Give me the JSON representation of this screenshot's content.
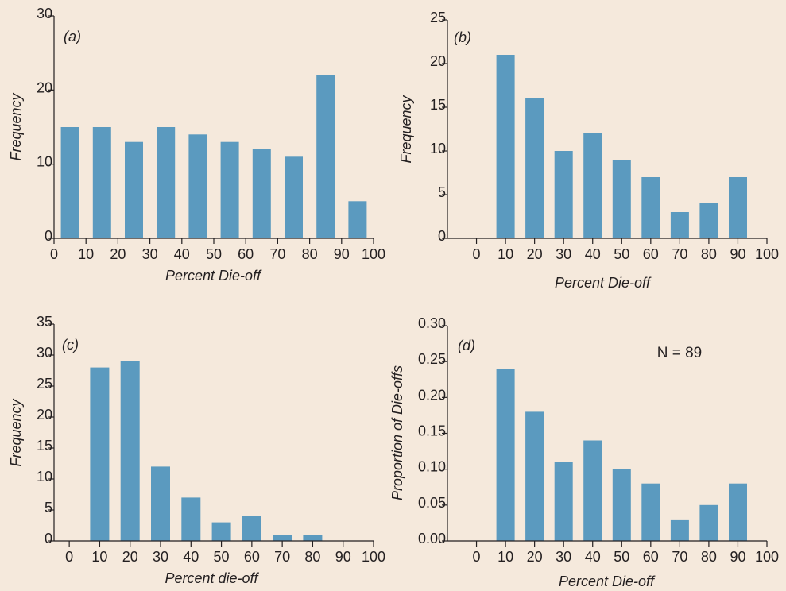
{
  "chart_data": [
    {
      "type": "bar",
      "panel_label": "(a)",
      "x": [
        5,
        15,
        25,
        35,
        45,
        55,
        65,
        75,
        85,
        95
      ],
      "values": [
        15,
        15,
        13,
        15,
        14,
        13,
        12,
        11,
        22,
        5
      ],
      "xticks": [
        "0",
        "10",
        "20",
        "30",
        "40",
        "50",
        "60",
        "70",
        "80",
        "90",
        "100"
      ],
      "yticks": [
        "0",
        "10",
        "20",
        "30"
      ],
      "xlabel": "Percent Die-off",
      "ylabel": "Frequency",
      "xlim": [
        0,
        100
      ],
      "ylim": [
        0,
        30
      ],
      "bar_color": "#5b9abf",
      "grid": false
    },
    {
      "type": "bar",
      "panel_label": "(b)",
      "x": [
        10,
        20,
        30,
        40,
        50,
        60,
        70,
        80,
        90
      ],
      "values": [
        21,
        16,
        10,
        12,
        9,
        7,
        3,
        4,
        7
      ],
      "xticks": [
        "0",
        "10",
        "20",
        "30",
        "40",
        "50",
        "60",
        "70",
        "80",
        "90",
        "100"
      ],
      "yticks": [
        "0",
        "5",
        "10",
        "15",
        "20",
        "25"
      ],
      "xlabel": "Percent  Die-off",
      "ylabel": "Frequency",
      "xlim": [
        -10,
        100
      ],
      "ylim": [
        0,
        25
      ],
      "bar_color": "#5b9abf",
      "grid": false
    },
    {
      "type": "bar",
      "panel_label": "(c)",
      "x": [
        10,
        20,
        30,
        40,
        50,
        60,
        70,
        80
      ],
      "values": [
        28,
        29,
        12,
        7,
        3,
        4,
        1,
        1
      ],
      "xticks": [
        "0",
        "10",
        "20",
        "30",
        "40",
        "50",
        "60",
        "70",
        "80",
        "90",
        "100"
      ],
      "yticks": [
        "0",
        "5",
        "10",
        "15",
        "20",
        "25",
        "30",
        "35"
      ],
      "xlabel": "Percent die-off",
      "ylabel": "Frequency",
      "xlim": [
        -5,
        100
      ],
      "ylim": [
        0,
        35
      ],
      "bar_color": "#5b9abf",
      "grid": false
    },
    {
      "type": "bar",
      "panel_label": "(d)",
      "annotation": "N = 89",
      "x": [
        10,
        20,
        30,
        40,
        50,
        60,
        70,
        80,
        90
      ],
      "values": [
        0.24,
        0.18,
        0.11,
        0.14,
        0.1,
        0.08,
        0.03,
        0.05,
        0.08
      ],
      "xticks": [
        "0",
        "10",
        "20",
        "30",
        "40",
        "50",
        "60",
        "70",
        "80",
        "90",
        "100"
      ],
      "yticks": [
        "0.00",
        "0.05",
        "0.10",
        "0.15",
        "0.20",
        "0.25",
        "0.30"
      ],
      "xlabel": "Percent Die-off",
      "ylabel": "Proportion of Die-offs",
      "xlim": [
        -10,
        100
      ],
      "ylim": [
        0,
        0.3
      ],
      "bar_color": "#5b9abf",
      "grid": false
    }
  ]
}
